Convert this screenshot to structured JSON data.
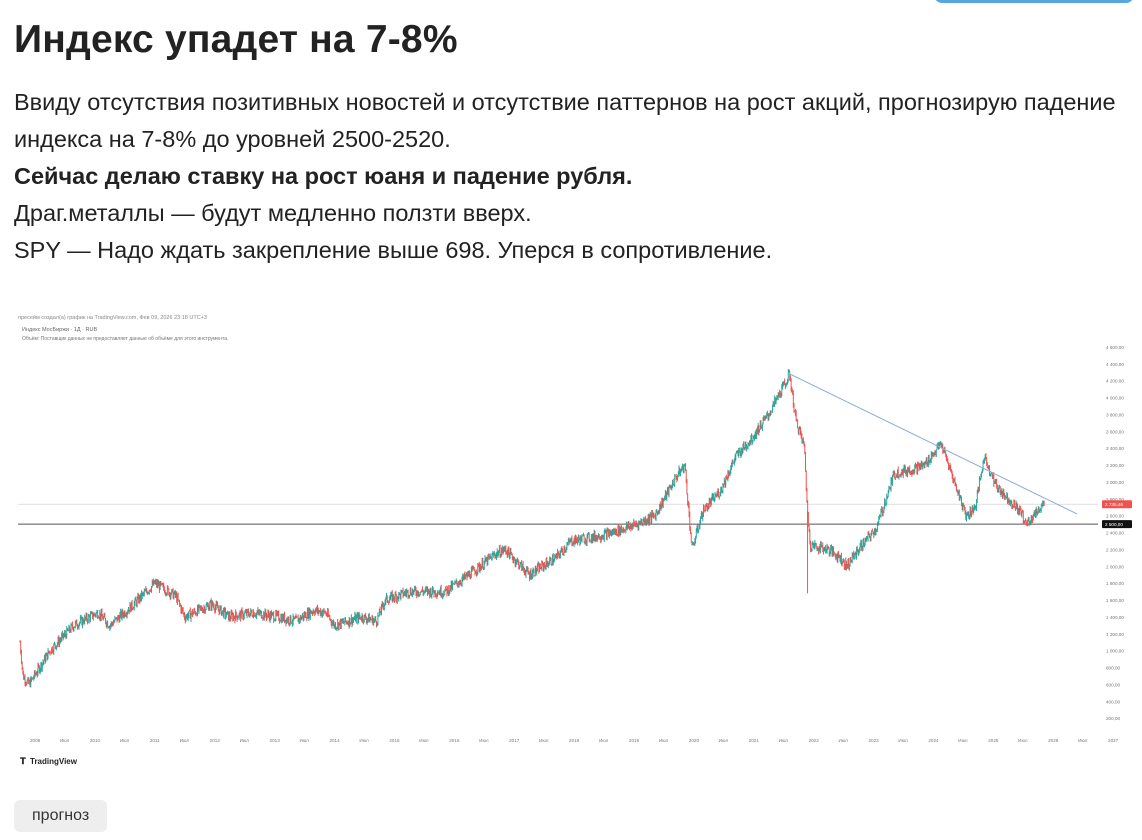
{
  "post": {
    "title": "Индекс упадет на 7-8%",
    "paragraphs": [
      "Ввиду отсутствия позитивных новостей и отсутствие паттернов на рост акций, прогнозирую падение индекса на 7-8% до уровней 2500-2520.",
      "Сейчас делаю ставку на рост юаня и падение рубля.",
      "Драг.металлы — будут медленно ползти вверх.",
      "SPY — Надо ждать закрепление выше 698. Уперся в сопротивление."
    ],
    "tag": "прогноз"
  },
  "chart": {
    "header": "пресейм создал(а) график на TradingView.com, Фев 09, 2026 23:18 UTC+3",
    "series_label": "Индекс МосБиржи · 1Д · RUB",
    "note": "Объём: Поставщик данных не предоставляет данные об объёме для этого инструмента.",
    "brand": "TradingView",
    "colors": {
      "up": "#26a69a",
      "down": "#ef5350",
      "trendline": "#8faadc",
      "support": "#555555",
      "price_badge": "#ef5350"
    }
  },
  "chart_data": {
    "type": "line",
    "x_tick_labels": [
      "2009",
      "Июл",
      "2010",
      "Июл",
      "2011",
      "Июл",
      "2012",
      "Июл",
      "2013",
      "Июл",
      "2014",
      "Июл",
      "2015",
      "Июл",
      "2016",
      "Июл",
      "2017",
      "Июл",
      "2018",
      "Июл",
      "2019",
      "Июл",
      "2020",
      "Июл",
      "2021",
      "Июл",
      "2022",
      "Июл",
      "2023",
      "Июл",
      "2024",
      "Июл",
      "2025",
      "Июл",
      "2026",
      "Июл",
      "2027"
    ],
    "y_tick_labels": [
      "200,00",
      "400,00",
      "600,00",
      "800,00",
      "1 000,00",
      "1 200,00",
      "1 400,00",
      "1 600,00",
      "1 800,00",
      "2 000,00",
      "2 200,00",
      "2 400,00",
      "2 600,00",
      "2 800,00",
      "3 000,00",
      "3 200,00",
      "3 400,00",
      "3 600,00",
      "3 800,00",
      "4 000,00",
      "4 200,00",
      "4 400,00",
      "4 600,00"
    ],
    "ylim": [
      0,
      4800
    ],
    "series": [
      {
        "values": [
          [
            2009.0,
            1100
          ],
          [
            2009.05,
            700
          ],
          [
            2009.15,
            600
          ],
          [
            2009.5,
            1000
          ],
          [
            2009.9,
            1300
          ],
          [
            2010.3,
            1450
          ],
          [
            2010.5,
            1300
          ],
          [
            2010.9,
            1550
          ],
          [
            2011.25,
            1800
          ],
          [
            2011.6,
            1650
          ],
          [
            2011.75,
            1400
          ],
          [
            2011.9,
            1450
          ],
          [
            2012.2,
            1550
          ],
          [
            2012.5,
            1400
          ],
          [
            2012.9,
            1450
          ],
          [
            2013.3,
            1400
          ],
          [
            2013.6,
            1350
          ],
          [
            2013.9,
            1480
          ],
          [
            2014.1,
            1450
          ],
          [
            2014.25,
            1300
          ],
          [
            2014.7,
            1400
          ],
          [
            2014.95,
            1350
          ],
          [
            2015.1,
            1600
          ],
          [
            2015.5,
            1700
          ],
          [
            2015.9,
            1700
          ],
          [
            2016.1,
            1700
          ],
          [
            2016.5,
            1900
          ],
          [
            2016.95,
            2150
          ],
          [
            2017.1,
            2200
          ],
          [
            2017.5,
            1900
          ],
          [
            2017.95,
            2100
          ],
          [
            2018.2,
            2300
          ],
          [
            2018.6,
            2350
          ],
          [
            2018.9,
            2400
          ],
          [
            2019.3,
            2500
          ],
          [
            2019.6,
            2600
          ],
          [
            2019.95,
            3050
          ],
          [
            2020.1,
            3200
          ],
          [
            2020.22,
            2200
          ],
          [
            2020.4,
            2650
          ],
          [
            2020.7,
            2900
          ],
          [
            2020.95,
            3300
          ],
          [
            2021.2,
            3500
          ],
          [
            2021.5,
            3800
          ],
          [
            2021.8,
            4200
          ],
          [
            2021.85,
            4280
          ],
          [
            2021.95,
            3750
          ],
          [
            2022.1,
            3400
          ],
          [
            2022.15,
            2600
          ],
          [
            2022.2,
            2250
          ],
          [
            2022.5,
            2200
          ],
          [
            2022.7,
            2100
          ],
          [
            2022.8,
            2000
          ],
          [
            2023.0,
            2200
          ],
          [
            2023.3,
            2450
          ],
          [
            2023.6,
            3100
          ],
          [
            2023.9,
            3150
          ],
          [
            2024.1,
            3200
          ],
          [
            2024.38,
            3450
          ],
          [
            2024.6,
            3000
          ],
          [
            2024.8,
            2600
          ],
          [
            2024.95,
            2700
          ],
          [
            2025.1,
            3300
          ],
          [
            2025.3,
            2950
          ],
          [
            2025.5,
            2800
          ],
          [
            2025.7,
            2650
          ],
          [
            2025.8,
            2500
          ],
          [
            2026.1,
            2750
          ]
        ]
      }
    ],
    "levels": [
      {
        "label": "2 500,00",
        "value": 2500
      },
      {
        "label": "2 735,46",
        "value": 2735.46
      }
    ],
    "trendline": [
      [
        2021.85,
        4280
      ],
      [
        2026.65,
        2620
      ]
    ],
    "current_price": 2735.46,
    "grid": false,
    "legend": "none"
  }
}
